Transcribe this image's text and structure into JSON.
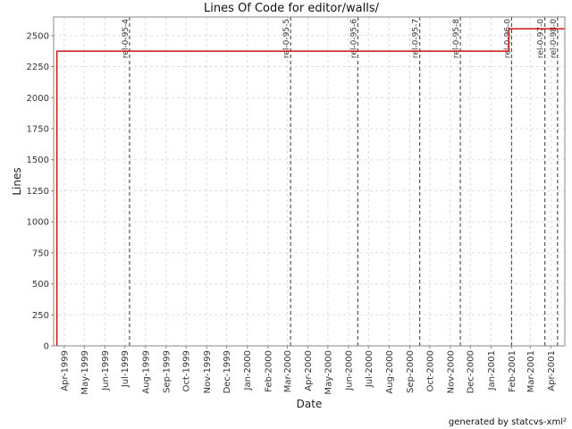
{
  "chart_data": {
    "type": "line",
    "title": "Lines Of Code for editor/walls/",
    "xlabel": "Date",
    "ylabel": "Lines",
    "ylim": [
      0,
      2650
    ],
    "xlim": [
      "1999-03-16",
      "2001-04-22"
    ],
    "grid": true,
    "x_tick_labels": [
      "Apr-1999",
      "May-1999",
      "Jun-1999",
      "Jul-1999",
      "Aug-1999",
      "Sep-1999",
      "Oct-1999",
      "Nov-1999",
      "Dec-1999",
      "Jan-2000",
      "Feb-2000",
      "Mar-2000",
      "Apr-2000",
      "May-2000",
      "Jun-2000",
      "Jul-2000",
      "Aug-2000",
      "Sep-2000",
      "Oct-2000",
      "Nov-2000",
      "Dec-2000",
      "Jan-2001",
      "Feb-2001",
      "Mar-2001",
      "Apr-2001"
    ],
    "x_tick_dates": [
      "1999-04-01",
      "1999-05-01",
      "1999-06-01",
      "1999-07-01",
      "1999-08-01",
      "1999-09-01",
      "1999-10-01",
      "1999-11-01",
      "1999-12-01",
      "2000-01-01",
      "2000-02-01",
      "2000-03-01",
      "2000-04-01",
      "2000-05-01",
      "2000-06-01",
      "2000-07-01",
      "2000-08-01",
      "2000-09-01",
      "2000-10-01",
      "2000-11-01",
      "2000-12-01",
      "2001-01-01",
      "2001-02-01",
      "2001-03-01",
      "2001-04-01"
    ],
    "y_ticks": [
      0,
      250,
      500,
      750,
      1000,
      1250,
      1500,
      1750,
      2000,
      2250,
      2500
    ],
    "series": [
      {
        "color": "#cc0000",
        "x": [
          "1999-03-21",
          "1999-03-21",
          "2001-01-28",
          "2001-01-28",
          "2001-04-22"
        ],
        "y": [
          0,
          2375,
          2375,
          2555,
          2555
        ]
      }
    ],
    "markers": [
      {
        "label": "rel-0-95-4",
        "date": "1999-07-08"
      },
      {
        "label": "rel-0-95-5",
        "date": "2000-03-06"
      },
      {
        "label": "rel-0-95-6",
        "date": "2000-06-15"
      },
      {
        "label": "rel-0-95-7",
        "date": "2000-09-16"
      },
      {
        "label": "rel-0-95-8",
        "date": "2000-11-16"
      },
      {
        "label": "rel-0-96-0",
        "date": "2001-02-01"
      },
      {
        "label": "rel-0-97-0",
        "date": "2001-03-23"
      },
      {
        "label": "rel-0-98-0",
        "date": "2001-04-11"
      }
    ]
  },
  "footer": "generated by statcvs-xml²"
}
